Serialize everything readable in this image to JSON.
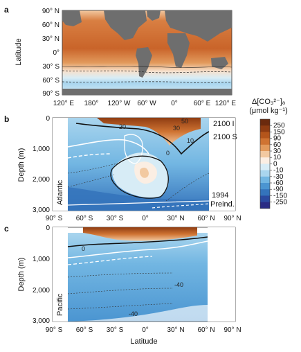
{
  "panels": {
    "a": {
      "label": "a",
      "ylabel": "Latitude",
      "yticks": [
        "90° N",
        "60° N",
        "30° N",
        "0°",
        "30° S",
        "60° S",
        "90° S"
      ],
      "xticks": [
        "120° E",
        "180°",
        "120° W",
        "60° W",
        "0°",
        "60° E",
        "120° E"
      ]
    },
    "b": {
      "label": "b",
      "ylabel": "Depth (m)",
      "yticks": [
        "0",
        "1,000",
        "2,000",
        "3,000"
      ],
      "xticks": [
        "90° S",
        "60° S",
        "30° S",
        "0°",
        "30° N",
        "60° N",
        "90° N"
      ],
      "basin": "Atlantic",
      "annotations": [
        "2100 I",
        "2100 S",
        "1994",
        "Preind."
      ],
      "contour_labels": [
        "50",
        "30",
        "20",
        "10",
        "0"
      ]
    },
    "c": {
      "label": "c",
      "ylabel": "Depth (m)",
      "yticks": [
        "0",
        "1,000",
        "2,000",
        "3,000"
      ],
      "xticks": [
        "90° S",
        "60° S",
        "30° S",
        "0°",
        "30° N",
        "60° N",
        "90° N"
      ],
      "xlabel": "Latitude",
      "basin": "Pacific",
      "contour_labels": [
        "0",
        "-40",
        "-40"
      ]
    }
  },
  "colorbar": {
    "title_line1": "Δ[CO₃²⁻]ₐ",
    "title_line2": "(μmol kg⁻¹)",
    "ticks": [
      "250",
      "150",
      "90",
      "60",
      "30",
      "10",
      "0",
      "-10",
      "-30",
      "-60",
      "-90",
      "-150",
      "-250"
    ],
    "colors": [
      "#6b2a0e",
      "#8f3c12",
      "#b4551b",
      "#cf7332",
      "#e29a5c",
      "#f2c9a1",
      "#fbeee3",
      "#d7ecf6",
      "#a9d5ee",
      "#72b6e2",
      "#4b95d1",
      "#3473bb",
      "#2b4aa0",
      "#2a2c84"
    ]
  }
}
